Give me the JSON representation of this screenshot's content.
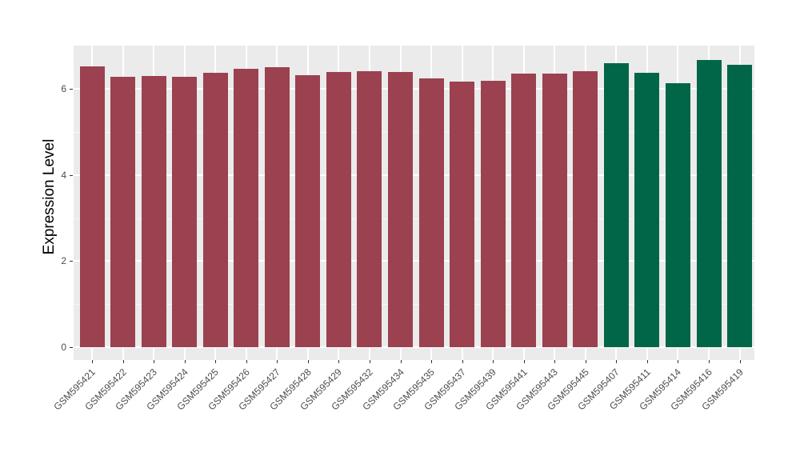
{
  "chart_data": {
    "type": "bar",
    "title": "",
    "xlabel": "",
    "ylabel": "Expression Level",
    "categories": [
      "GSM595421",
      "GSM595422",
      "GSM595423",
      "GSM595424",
      "GSM595425",
      "GSM595426",
      "GSM595427",
      "GSM595428",
      "GSM595429",
      "GSM595432",
      "GSM595434",
      "GSM595435",
      "GSM595437",
      "GSM595439",
      "GSM595441",
      "GSM595443",
      "GSM595445",
      "GSM595407",
      "GSM595411",
      "GSM595414",
      "GSM595416",
      "GSM595419"
    ],
    "values": [
      6.52,
      6.28,
      6.31,
      6.28,
      6.37,
      6.46,
      6.51,
      6.32,
      6.39,
      6.41,
      6.39,
      6.25,
      6.17,
      6.19,
      6.35,
      6.35,
      6.42,
      6.6,
      6.38,
      6.14,
      6.67,
      6.56
    ],
    "groups": [
      "A",
      "A",
      "A",
      "A",
      "A",
      "A",
      "A",
      "A",
      "A",
      "A",
      "A",
      "A",
      "A",
      "A",
      "A",
      "A",
      "A",
      "B",
      "B",
      "B",
      "B",
      "B"
    ],
    "group_colors": {
      "A": "#9B4150",
      "B": "#006647"
    },
    "yticks": [
      "0",
      "2",
      "4",
      "6"
    ],
    "ytick_values": [
      0,
      2,
      4,
      6
    ],
    "yticks_minor": [
      1,
      3,
      5
    ],
    "ylim": [
      -0.3,
      7.0
    ],
    "grid": "on",
    "legend": "none",
    "panel_background": "#EBEBEB",
    "grid_color": "#FFFFFF",
    "axis_text_color": "#4D4D4D",
    "tick_color": "#333333"
  }
}
